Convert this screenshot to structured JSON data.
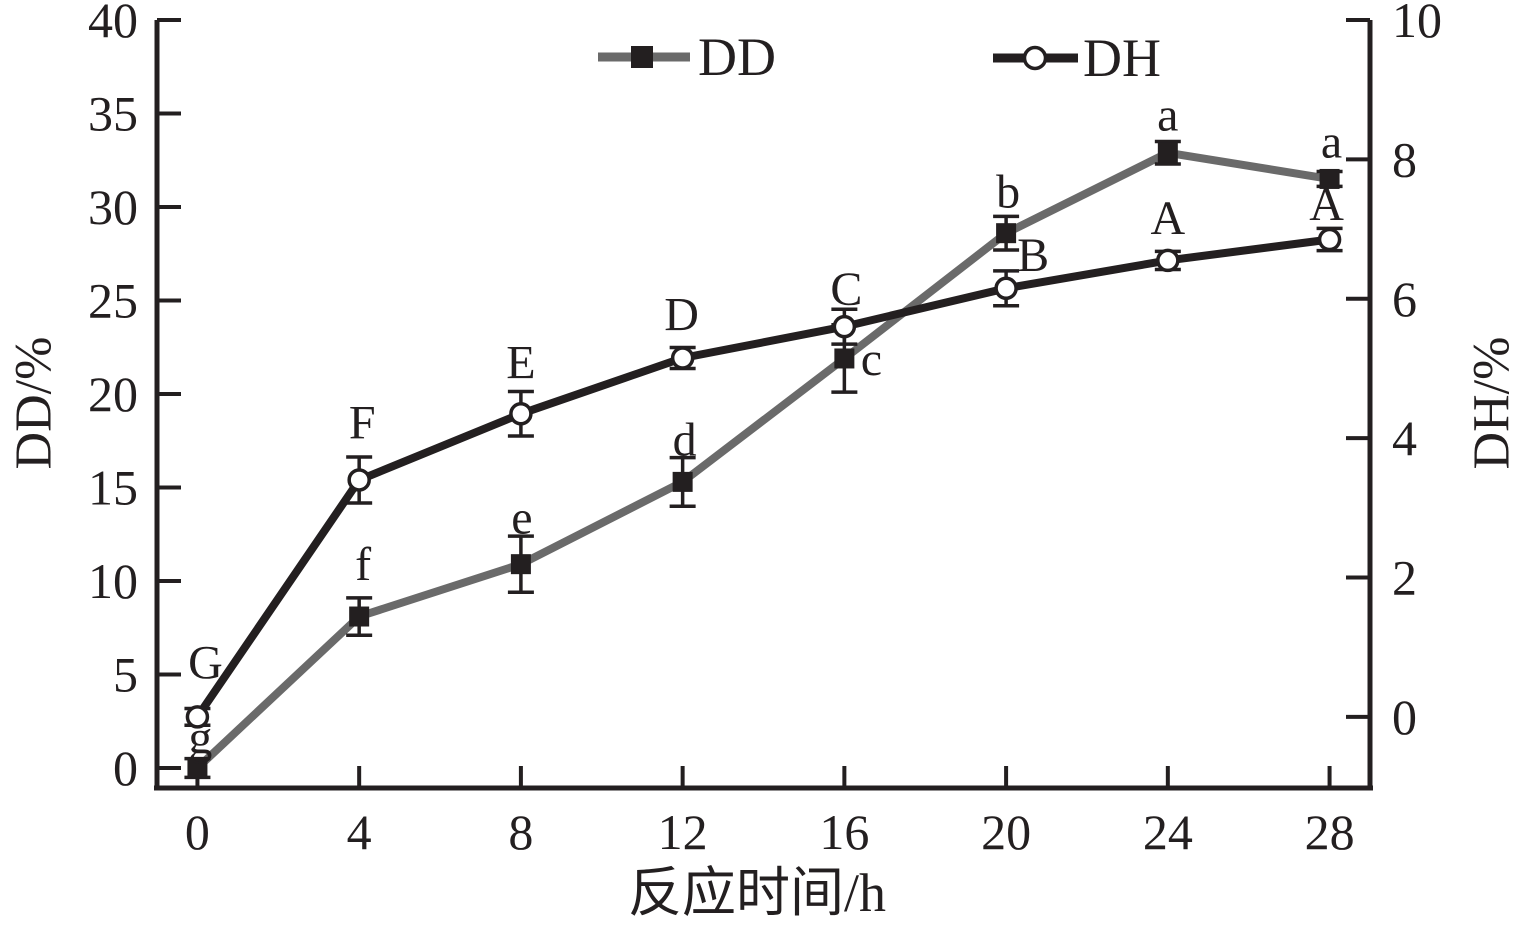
{
  "figure": {
    "background": "#ffffff",
    "text_color": "#231f20"
  },
  "chart_data": {
    "type": "line",
    "title": "",
    "xlabel": "反应时间/h",
    "grid": false,
    "legend": {
      "position": "top-center",
      "entries": [
        "DD",
        "DH"
      ]
    },
    "x": [
      0,
      4,
      8,
      12,
      16,
      20,
      24,
      28
    ],
    "x_ticks": [
      0,
      4,
      8,
      12,
      16,
      20,
      24,
      28
    ],
    "x_range": [
      -1,
      29
    ],
    "left_axis": {
      "label": "DD/%",
      "ticks": [
        0,
        5,
        10,
        15,
        20,
        25,
        30,
        35,
        40
      ],
      "range": [
        -1.07,
        40
      ]
    },
    "right_axis": {
      "label": "DH/%",
      "ticks": [
        0,
        2,
        4,
        6,
        8,
        10
      ],
      "range": [
        -1.02,
        10
      ]
    },
    "series": [
      {
        "name": "DD",
        "axis": "left",
        "line_color": "#6a6a6a",
        "marker": "filled-square",
        "marker_color": "#231f20",
        "values": [
          0,
          8.1,
          10.9,
          15.3,
          21.9,
          28.6,
          32.9,
          31.5
        ],
        "errors": [
          0.5,
          1.0,
          1.5,
          1.3,
          1.8,
          0.9,
          0.6,
          0.4
        ],
        "point_labels": [
          "g",
          "f",
          "e",
          "d",
          "c",
          "b",
          "a",
          "a"
        ],
        "label_offsets": [
          [
            3,
            -30
          ],
          [
            4,
            -52
          ],
          [
            1,
            -46
          ],
          [
            2,
            -42
          ],
          [
            27,
            1
          ],
          [
            2,
            -41
          ],
          [
            0,
            -38
          ],
          [
            2,
            -37
          ]
        ]
      },
      {
        "name": "DH",
        "axis": "right",
        "line_color": "#231f20",
        "marker": "open-circle",
        "marker_color": "#231f20",
        "values": [
          0,
          3.4,
          4.35,
          5.15,
          5.6,
          6.15,
          6.55,
          6.85
        ],
        "errors": [
          0.12,
          0.33,
          0.32,
          0.15,
          0.25,
          0.25,
          0.13,
          0.16
        ],
        "point_labels": [
          "G",
          "F",
          "E",
          "D",
          "C",
          "B",
          "A",
          "A"
        ],
        "label_offsets": [
          [
            8,
            -54
          ],
          [
            3,
            -57
          ],
          [
            0,
            -51
          ],
          [
            -1,
            -43
          ],
          [
            2,
            -37
          ],
          [
            27,
            -33
          ],
          [
            0,
            -42
          ],
          [
            -3,
            -35
          ]
        ]
      }
    ]
  }
}
